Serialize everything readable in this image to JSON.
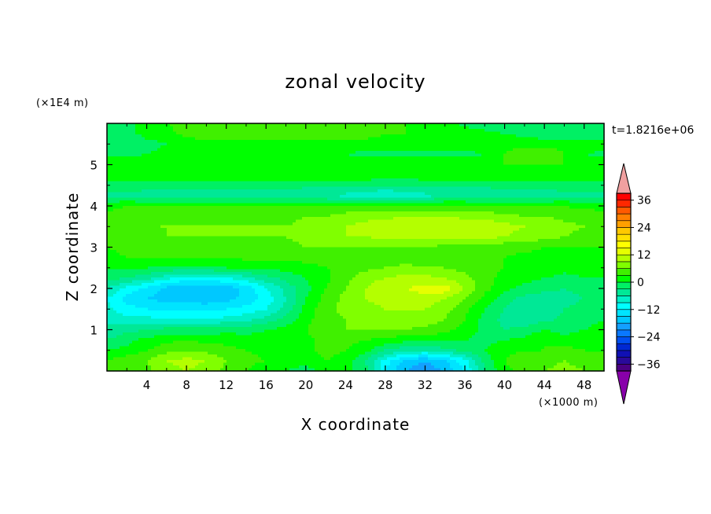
{
  "chart_data": {
    "type": "heatmap",
    "title": "zonal velocity",
    "xlabel": "X coordinate",
    "ylabel": "Z coordinate",
    "x_unit": "(×1000 m)",
    "y_unit": "(×1E4 m)",
    "time_label": "t=1.8216e+06",
    "xlim": [
      0,
      50
    ],
    "ylim": [
      0,
      6
    ],
    "x_ticks": [
      4,
      8,
      12,
      16,
      20,
      24,
      28,
      32,
      36,
      40,
      44,
      48
    ],
    "y_ticks": [
      1,
      2,
      3,
      4,
      5
    ],
    "colorbar": {
      "ticks": [
        36,
        24,
        12,
        0,
        -12,
        -24,
        -36
      ],
      "levels": [
        -39,
        -36,
        -33,
        -30,
        -27,
        -24,
        -21,
        -18,
        -15,
        -12,
        -9,
        -6,
        -3,
        0,
        3,
        6,
        9,
        12,
        15,
        18,
        21,
        24,
        27,
        30,
        33,
        36,
        39
      ],
      "colors": [
        "#4b0082",
        "#2a0a9a",
        "#1010b4",
        "#0028d2",
        "#0050f0",
        "#0a78ff",
        "#14a0ff",
        "#00c8ff",
        "#00e4ff",
        "#00ffff",
        "#00f0c8",
        "#00e896",
        "#00f064",
        "#00ff00",
        "#40f000",
        "#80ff00",
        "#b4ff00",
        "#e6ff00",
        "#ffff00",
        "#ffe000",
        "#ffc800",
        "#ffa000",
        "#ff8000",
        "#ff5a00",
        "#ff2800",
        "#ff0000"
      ],
      "over_color": "#f0a0a0",
      "under_color": "#8800aa"
    },
    "field": [
      [
        3,
        4,
        5,
        8,
        9,
        8,
        5,
        3,
        1,
        0,
        -1,
        1,
        1,
        -2,
        -12,
        -18,
        -20,
        -18,
        -12,
        -3,
        2,
        4,
        6,
        7,
        6,
        5
      ],
      [
        3,
        5,
        6,
        9,
        10,
        9,
        6,
        4,
        3,
        1,
        1,
        3,
        2,
        -3,
        -10,
        -16,
        -18,
        -15,
        -10,
        -2,
        3,
        5,
        5,
        6,
        5,
        4
      ],
      [
        0,
        1,
        3,
        5,
        6,
        5,
        4,
        3,
        2,
        1,
        2,
        4,
        3,
        1,
        -3,
        -5,
        -6,
        -4,
        -2,
        0,
        2,
        3,
        3,
        4,
        3,
        3
      ],
      [
        -3,
        -1,
        1,
        2,
        3,
        2,
        2,
        1,
        1,
        1,
        2,
        4,
        4,
        3,
        2,
        1,
        1,
        1,
        0,
        -1,
        0,
        1,
        3,
        1,
        2,
        2
      ],
      [
        -5,
        -4,
        -3,
        -2,
        -2,
        -2,
        -1,
        -1,
        0,
        1,
        3,
        5,
        6,
        6,
        6,
        6,
        5,
        4,
        2,
        -1,
        -3,
        -2,
        0,
        -1,
        0,
        1
      ],
      [
        -7,
        -8,
        -8,
        -9,
        -9,
        -9,
        -8,
        -7,
        -5,
        -2,
        2,
        5,
        6,
        7,
        8,
        8,
        8,
        6,
        3,
        -1,
        -4,
        -5,
        -4,
        -2,
        -1,
        0
      ],
      [
        -8,
        -11,
        -12,
        -13,
        -13,
        -13,
        -12,
        -11,
        -9,
        -5,
        1,
        5,
        7,
        8,
        9,
        9,
        9,
        7,
        4,
        0,
        -3,
        -5,
        -5,
        -3,
        -2,
        -1
      ],
      [
        -9,
        -13,
        -15,
        -16,
        -16,
        -17,
        -16,
        -14,
        -11,
        -6,
        0,
        4,
        7,
        9,
        10,
        11,
        11,
        9,
        6,
        2,
        -2,
        -4,
        -5,
        -4,
        -3,
        -2
      ],
      [
        -6,
        -10,
        -13,
        -16,
        -18,
        -18,
        -17,
        -14,
        -9,
        -5,
        -1,
        3,
        6,
        9,
        11,
        12,
        13,
        14,
        9,
        4,
        1,
        -1,
        -2,
        -3,
        -2,
        -1
      ],
      [
        -2,
        -3,
        -5,
        -8,
        -10,
        -10,
        -9,
        -7,
        -4,
        -2,
        0,
        2,
        5,
        8,
        9,
        10,
        10,
        9,
        7,
        4,
        2,
        1,
        0,
        -1,
        0,
        0
      ],
      [
        0,
        1,
        0,
        -1,
        -1,
        -1,
        0,
        0,
        1,
        1,
        2,
        3,
        4,
        5,
        6,
        7,
        6,
        6,
        5,
        4,
        3,
        2,
        2,
        1,
        1,
        1
      ],
      [
        2,
        3,
        3,
        3,
        3,
        3,
        3,
        4,
        4,
        4,
        4,
        4,
        4,
        4,
        4,
        4,
        4,
        3,
        3,
        3,
        3,
        2,
        2,
        2,
        2,
        2
      ],
      [
        3,
        4,
        4,
        5,
        5,
        5,
        5,
        5,
        5,
        5,
        6,
        6,
        6,
        6,
        6,
        6,
        6,
        5,
        5,
        5,
        4,
        4,
        3,
        3,
        3,
        3
      ],
      [
        4,
        5,
        5,
        6,
        6,
        6,
        6,
        6,
        6,
        6,
        7,
        8,
        9,
        9,
        10,
        10,
        10,
        10,
        10,
        10,
        9,
        8,
        7,
        6,
        5,
        5
      ],
      [
        4,
        5,
        6,
        6,
        6,
        6,
        6,
        6,
        6,
        6,
        7,
        8,
        9,
        10,
        11,
        12,
        12,
        12,
        12,
        11,
        10,
        9,
        8,
        7,
        6,
        5
      ],
      [
        4,
        4,
        5,
        5,
        5,
        5,
        5,
        5,
        5,
        5,
        6,
        6,
        7,
        8,
        8,
        9,
        9,
        9,
        8,
        8,
        7,
        6,
        6,
        5,
        5,
        4
      ],
      [
        2,
        3,
        3,
        3,
        3,
        3,
        3,
        3,
        3,
        3,
        3,
        3,
        4,
        4,
        4,
        4,
        4,
        4,
        4,
        3,
        3,
        3,
        3,
        3,
        2,
        2
      ],
      [
        -4,
        -4,
        -5,
        -5,
        -5,
        -5,
        -5,
        -5,
        -5,
        -5,
        -6,
        -6,
        -7,
        -9,
        -9,
        -8,
        -7,
        -6,
        -6,
        -6,
        -5,
        -5,
        -5,
        -4,
        -4,
        -4
      ],
      [
        -1,
        -1,
        -1,
        -2,
        -2,
        -2,
        -2,
        -2,
        -2,
        -2,
        -2,
        -2,
        -2,
        -2,
        -3,
        -3,
        -2,
        -2,
        -2,
        -2,
        -2,
        -2,
        -2,
        -1,
        -1,
        -1
      ],
      [
        1,
        1,
        2,
        2,
        2,
        2,
        2,
        2,
        2,
        2,
        2,
        2,
        2,
        2,
        2,
        2,
        2,
        2,
        2,
        2,
        2,
        2,
        2,
        2,
        1,
        1
      ],
      [
        3,
        3,
        3,
        3,
        3,
        3,
        3,
        3,
        3,
        3,
        3,
        3,
        3,
        3,
        3,
        3,
        3,
        3,
        3,
        3,
        3,
        3,
        3,
        3,
        3,
        3
      ],
      [
        -1,
        -1,
        0,
        1,
        2,
        2,
        2,
        1,
        1,
        1,
        0,
        0,
        0,
        -1,
        -1,
        -1,
        -1,
        -1,
        -1,
        0,
        3,
        5,
        5,
        3,
        0,
        -1
      ],
      [
        -3,
        -2,
        -1,
        0,
        1,
        2,
        2,
        2,
        2,
        2,
        2,
        2,
        2,
        2,
        2,
        2,
        2,
        2,
        2,
        2,
        2,
        2,
        2,
        2,
        2,
        2
      ],
      [
        -2,
        -1,
        1,
        2,
        4,
        5,
        5,
        5,
        5,
        5,
        4,
        4,
        4,
        4,
        3,
        3,
        3,
        3,
        2,
        1,
        0,
        -1,
        -2,
        -2,
        -2,
        -2
      ],
      [
        -2,
        -1,
        1,
        3,
        4,
        5,
        6,
        6,
        6,
        6,
        5,
        5,
        5,
        4,
        4,
        3,
        2,
        1,
        -1,
        -2,
        -3,
        -3,
        -2,
        -1,
        -1,
        -1
      ]
    ]
  }
}
